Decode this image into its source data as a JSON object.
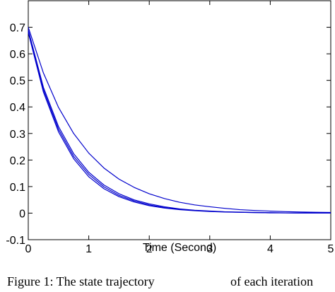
{
  "chart_data": {
    "type": "line",
    "xlabel": "Time (Second)",
    "caption": [
      "Figure 1: The state trajectory",
      "of each iteration"
    ],
    "x": [
      0,
      0.25,
      0.5,
      0.75,
      1,
      1.25,
      1.5,
      1.75,
      2,
      2.25,
      2.5,
      2.75,
      3,
      3.25,
      3.5,
      3.75,
      4,
      4.25,
      4.5,
      4.75,
      5
    ],
    "series": [
      {
        "color": "#0000cc",
        "values": [
          0.7,
          0.528,
          0.398,
          0.3,
          0.226,
          0.17,
          0.128,
          0.097,
          0.073,
          0.055,
          0.041,
          0.031,
          0.024,
          0.018,
          0.013,
          0.01,
          0.0076,
          0.0057,
          0.0043,
          0.0033,
          0.0025
        ]
      },
      {
        "color": "#0000cc",
        "values": [
          0.69,
          0.474,
          0.326,
          0.224,
          0.154,
          0.106,
          0.073,
          0.05,
          0.035,
          0.024,
          0.016,
          0.011,
          0.008,
          0.005,
          0.004,
          0.003,
          0.002,
          0.001,
          0.001,
          0.001,
          0
        ]
      },
      {
        "color": "#0000cc",
        "values": [
          0.68,
          0.456,
          0.306,
          0.205,
          0.137,
          0.092,
          0.062,
          0.042,
          0.028,
          0.019,
          0.013,
          0.009,
          0.006,
          0.004,
          0.003,
          0.002,
          0.001,
          0.001,
          0,
          0,
          0
        ]
      },
      {
        "color": "#0000cc",
        "values": [
          0.685,
          0.465,
          0.316,
          0.214,
          0.146,
          0.099,
          0.067,
          0.046,
          0.031,
          0.021,
          0.014,
          0.01,
          0.007,
          0.005,
          0.003,
          0.002,
          0.001,
          0.001,
          0,
          0,
          0
        ]
      }
    ],
    "xlim": [
      0,
      5
    ],
    "ylim": [
      -0.1,
      0.8
    ],
    "xticks": [
      0,
      1,
      2,
      3,
      4,
      5
    ],
    "yticks": [
      -0.1,
      0,
      0.1,
      0.2,
      0.3,
      0.4,
      0.5,
      0.6,
      0.7
    ]
  }
}
